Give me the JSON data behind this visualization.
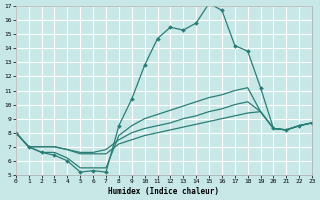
{
  "xlabel": "Humidex (Indice chaleur)",
  "xlim": [
    0,
    23
  ],
  "ylim": [
    5,
    17
  ],
  "xticks": [
    0,
    1,
    2,
    3,
    4,
    5,
    6,
    7,
    8,
    9,
    10,
    11,
    12,
    13,
    14,
    15,
    16,
    17,
    18,
    19,
    20,
    21,
    22,
    23
  ],
  "yticks": [
    5,
    6,
    7,
    8,
    9,
    10,
    11,
    12,
    13,
    14,
    15,
    16,
    17
  ],
  "background_color": "#c8e8e8",
  "grid_color": "#ffffff",
  "line_color": "#2a7d76",
  "series": [
    {
      "x": [
        0,
        1,
        2,
        3,
        4,
        5,
        6,
        7,
        8,
        9,
        10,
        11,
        12,
        13,
        14,
        15,
        16,
        17,
        18,
        19,
        20,
        21,
        22,
        23
      ],
      "y": [
        8,
        7,
        6.6,
        6.4,
        6.0,
        5.2,
        5.3,
        5.2,
        8.5,
        10.4,
        12.8,
        14.7,
        15.5,
        15.3,
        15.8,
        17.2,
        16.7,
        14.2,
        13.8,
        11.2,
        8.3,
        8.2,
        8.5,
        8.7
      ],
      "markers": true
    },
    {
      "x": [
        0,
        1,
        2,
        3,
        4,
        5,
        6,
        7,
        8,
        9,
        10,
        11,
        12,
        13,
        14,
        15,
        16,
        17,
        18,
        19,
        20,
        21,
        22,
        23
      ],
      "y": [
        8,
        7,
        6.6,
        6.6,
        6.2,
        5.5,
        5.5,
        5.5,
        7.8,
        8.5,
        9.0,
        9.3,
        9.6,
        9.9,
        10.2,
        10.5,
        10.7,
        11.0,
        11.2,
        9.5,
        8.3,
        8.2,
        8.5,
        8.7
      ],
      "markers": false
    },
    {
      "x": [
        0,
        1,
        2,
        3,
        4,
        5,
        6,
        7,
        8,
        9,
        10,
        11,
        12,
        13,
        14,
        15,
        16,
        17,
        18,
        19,
        20,
        21,
        22,
        23
      ],
      "y": [
        8,
        7,
        7.0,
        7.0,
        6.8,
        6.6,
        6.6,
        6.8,
        7.5,
        8.0,
        8.3,
        8.5,
        8.7,
        9.0,
        9.2,
        9.5,
        9.7,
        10.0,
        10.2,
        9.5,
        8.3,
        8.2,
        8.5,
        8.7
      ],
      "markers": false
    },
    {
      "x": [
        0,
        1,
        2,
        3,
        4,
        5,
        6,
        7,
        8,
        9,
        10,
        11,
        12,
        13,
        14,
        15,
        16,
        17,
        18,
        19,
        20,
        21,
        22,
        23
      ],
      "y": [
        8,
        7,
        7.0,
        7.0,
        6.8,
        6.5,
        6.5,
        6.5,
        7.2,
        7.5,
        7.8,
        8.0,
        8.2,
        8.4,
        8.6,
        8.8,
        9.0,
        9.2,
        9.4,
        9.5,
        8.3,
        8.2,
        8.5,
        8.7
      ],
      "markers": false
    }
  ]
}
